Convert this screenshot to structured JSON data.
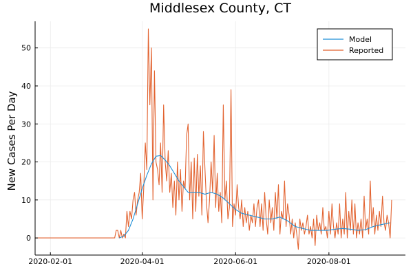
{
  "chart_data": {
    "type": "line",
    "title": "Middlesex County, CT",
    "xlabel": "",
    "ylabel": "New Cases Per Day",
    "x_ticks": [
      "2020-02-01",
      "2020-04-01",
      "2020-06-01",
      "2020-08-01"
    ],
    "y_ticks": [
      0,
      10,
      20,
      30,
      40,
      50
    ],
    "xlim": [
      "2020-01-22",
      "2020-09-20"
    ],
    "ylim": [
      -4.5,
      57
    ],
    "grid": true,
    "legend_position": "top-right",
    "series": [
      {
        "name": "Model",
        "color": "#1f8fd6",
        "points": [
          [
            "2020-03-17",
            0
          ],
          [
            "2020-03-20",
            0.5
          ],
          [
            "2020-03-23",
            2
          ],
          [
            "2020-03-26",
            5
          ],
          [
            "2020-03-29",
            9
          ],
          [
            "2020-04-01",
            13
          ],
          [
            "2020-04-04",
            16.5
          ],
          [
            "2020-04-07",
            19.5
          ],
          [
            "2020-04-10",
            21.5
          ],
          [
            "2020-04-13",
            21.7
          ],
          [
            "2020-04-16",
            20.5
          ],
          [
            "2020-04-19",
            19
          ],
          [
            "2020-04-22",
            17
          ],
          [
            "2020-04-25",
            15
          ],
          [
            "2020-04-28",
            13.5
          ],
          [
            "2020-05-01",
            12
          ],
          [
            "2020-05-04",
            12
          ],
          [
            "2020-05-08",
            12
          ],
          [
            "2020-05-12",
            11.5
          ],
          [
            "2020-05-16",
            12
          ],
          [
            "2020-05-20",
            11.5
          ],
          [
            "2020-05-24",
            10.5
          ],
          [
            "2020-05-28",
            9
          ],
          [
            "2020-06-01",
            7.5
          ],
          [
            "2020-06-05",
            6.5
          ],
          [
            "2020-06-10",
            6
          ],
          [
            "2020-06-15",
            5.5
          ],
          [
            "2020-06-20",
            5
          ],
          [
            "2020-06-25",
            5
          ],
          [
            "2020-06-30",
            5.5
          ],
          [
            "2020-07-05",
            4.5
          ],
          [
            "2020-07-10",
            3
          ],
          [
            "2020-07-15",
            2.5
          ],
          [
            "2020-07-20",
            2
          ],
          [
            "2020-07-25",
            2
          ],
          [
            "2020-07-31",
            2
          ],
          [
            "2020-08-05",
            2.3
          ],
          [
            "2020-08-10",
            2.5
          ],
          [
            "2020-08-15",
            2.3
          ],
          [
            "2020-08-20",
            2
          ],
          [
            "2020-08-25",
            2.2
          ],
          [
            "2020-08-30",
            3
          ],
          [
            "2020-09-04",
            3.5
          ],
          [
            "2020-09-10",
            4
          ]
        ]
      },
      {
        "name": "Reported",
        "color": "#e2622f",
        "points": [
          [
            "2020-01-22",
            0
          ],
          [
            "2020-03-14",
            0
          ],
          [
            "2020-03-15",
            2
          ],
          [
            "2020-03-16",
            2
          ],
          [
            "2020-03-17",
            0
          ],
          [
            "2020-03-18",
            2
          ],
          [
            "2020-03-19",
            0
          ],
          [
            "2020-03-20",
            1
          ],
          [
            "2020-03-21",
            0
          ],
          [
            "2020-03-22",
            7
          ],
          [
            "2020-03-23",
            3
          ],
          [
            "2020-03-24",
            7
          ],
          [
            "2020-03-25",
            5
          ],
          [
            "2020-03-26",
            10
          ],
          [
            "2020-03-27",
            12
          ],
          [
            "2020-03-28",
            6
          ],
          [
            "2020-03-29",
            10
          ],
          [
            "2020-03-30",
            12
          ],
          [
            "2020-03-31",
            17
          ],
          [
            "2020-04-01",
            5
          ],
          [
            "2020-04-02",
            13
          ],
          [
            "2020-04-03",
            25
          ],
          [
            "2020-04-04",
            18
          ],
          [
            "2020-04-05",
            55
          ],
          [
            "2020-04-06",
            35
          ],
          [
            "2020-04-07",
            50
          ],
          [
            "2020-04-08",
            10
          ],
          [
            "2020-04-09",
            44
          ],
          [
            "2020-04-10",
            20
          ],
          [
            "2020-04-11",
            18
          ],
          [
            "2020-04-12",
            14
          ],
          [
            "2020-04-13",
            25
          ],
          [
            "2020-04-14",
            12
          ],
          [
            "2020-04-15",
            35
          ],
          [
            "2020-04-16",
            20
          ],
          [
            "2020-04-17",
            15
          ],
          [
            "2020-04-18",
            23
          ],
          [
            "2020-04-19",
            12
          ],
          [
            "2020-04-20",
            17
          ],
          [
            "2020-04-21",
            8
          ],
          [
            "2020-04-22",
            15
          ],
          [
            "2020-04-23",
            6
          ],
          [
            "2020-04-24",
            20
          ],
          [
            "2020-04-25",
            10
          ],
          [
            "2020-04-26",
            18
          ],
          [
            "2020-04-27",
            7
          ],
          [
            "2020-04-28",
            15
          ],
          [
            "2020-04-29",
            13
          ],
          [
            "2020-04-30",
            27
          ],
          [
            "2020-05-01",
            30
          ],
          [
            "2020-05-02",
            10
          ],
          [
            "2020-05-03",
            20
          ],
          [
            "2020-05-04",
            5
          ],
          [
            "2020-05-05",
            21
          ],
          [
            "2020-05-06",
            7
          ],
          [
            "2020-05-07",
            22
          ],
          [
            "2020-05-08",
            11
          ],
          [
            "2020-05-09",
            19
          ],
          [
            "2020-05-10",
            6
          ],
          [
            "2020-05-11",
            28
          ],
          [
            "2020-05-12",
            18
          ],
          [
            "2020-05-13",
            9
          ],
          [
            "2020-05-14",
            4
          ],
          [
            "2020-05-15",
            10
          ],
          [
            "2020-05-16",
            20
          ],
          [
            "2020-05-17",
            12
          ],
          [
            "2020-05-18",
            27
          ],
          [
            "2020-05-19",
            8
          ],
          [
            "2020-05-20",
            17
          ],
          [
            "2020-05-21",
            7
          ],
          [
            "2020-05-22",
            12
          ],
          [
            "2020-05-23",
            4
          ],
          [
            "2020-05-24",
            35
          ],
          [
            "2020-05-25",
            10
          ],
          [
            "2020-05-26",
            15
          ],
          [
            "2020-05-27",
            5
          ],
          [
            "2020-05-28",
            8
          ],
          [
            "2020-05-29",
            39
          ],
          [
            "2020-05-30",
            3
          ],
          [
            "2020-05-31",
            9
          ],
          [
            "2020-06-01",
            6
          ],
          [
            "2020-06-02",
            14
          ],
          [
            "2020-06-03",
            8
          ],
          [
            "2020-06-04",
            5
          ],
          [
            "2020-06-05",
            10
          ],
          [
            "2020-06-06",
            3
          ],
          [
            "2020-06-07",
            8
          ],
          [
            "2020-06-08",
            4
          ],
          [
            "2020-06-09",
            7
          ],
          [
            "2020-06-10",
            2
          ],
          [
            "2020-06-11",
            6
          ],
          [
            "2020-06-12",
            4
          ],
          [
            "2020-06-13",
            9
          ],
          [
            "2020-06-14",
            3
          ],
          [
            "2020-06-15",
            8
          ],
          [
            "2020-06-16",
            10
          ],
          [
            "2020-06-17",
            3
          ],
          [
            "2020-06-18",
            9
          ],
          [
            "2020-06-19",
            2
          ],
          [
            "2020-06-20",
            12
          ],
          [
            "2020-06-21",
            5
          ],
          [
            "2020-06-22",
            1
          ],
          [
            "2020-06-23",
            10
          ],
          [
            "2020-06-24",
            4
          ],
          [
            "2020-06-25",
            8
          ],
          [
            "2020-06-26",
            2
          ],
          [
            "2020-06-27",
            12
          ],
          [
            "2020-06-28",
            5
          ],
          [
            "2020-06-29",
            14
          ],
          [
            "2020-06-30",
            1
          ],
          [
            "2020-07-01",
            7
          ],
          [
            "2020-07-02",
            5
          ],
          [
            "2020-07-03",
            15
          ],
          [
            "2020-07-04",
            3
          ],
          [
            "2020-07-05",
            9
          ],
          [
            "2020-07-06",
            6
          ],
          [
            "2020-07-07",
            1
          ],
          [
            "2020-07-08",
            5
          ],
          [
            "2020-07-09",
            0
          ],
          [
            "2020-07-10",
            4
          ],
          [
            "2020-07-11",
            1
          ],
          [
            "2020-07-12",
            -3
          ],
          [
            "2020-07-13",
            5
          ],
          [
            "2020-07-14",
            2
          ],
          [
            "2020-07-15",
            4
          ],
          [
            "2020-07-16",
            1
          ],
          [
            "2020-07-17",
            3
          ],
          [
            "2020-07-18",
            6
          ],
          [
            "2020-07-19",
            1
          ],
          [
            "2020-07-20",
            3
          ],
          [
            "2020-07-21",
            0
          ],
          [
            "2020-07-22",
            5
          ],
          [
            "2020-07-23",
            -2
          ],
          [
            "2020-07-24",
            6
          ],
          [
            "2020-07-25",
            2
          ],
          [
            "2020-07-26",
            4
          ],
          [
            "2020-07-27",
            1
          ],
          [
            "2020-07-28",
            8
          ],
          [
            "2020-07-29",
            2
          ],
          [
            "2020-07-30",
            3
          ],
          [
            "2020-07-31",
            0
          ],
          [
            "2020-08-01",
            7
          ],
          [
            "2020-08-02",
            1
          ],
          [
            "2020-08-03",
            9
          ],
          [
            "2020-08-04",
            3
          ],
          [
            "2020-08-05",
            0
          ],
          [
            "2020-08-06",
            4
          ],
          [
            "2020-08-07",
            1
          ],
          [
            "2020-08-08",
            9
          ],
          [
            "2020-08-09",
            0
          ],
          [
            "2020-08-10",
            5
          ],
          [
            "2020-08-11",
            1
          ],
          [
            "2020-08-12",
            12
          ],
          [
            "2020-08-13",
            0
          ],
          [
            "2020-08-14",
            7
          ],
          [
            "2020-08-15",
            2
          ],
          [
            "2020-08-16",
            10
          ],
          [
            "2020-08-17",
            1
          ],
          [
            "2020-08-18",
            9
          ],
          [
            "2020-08-19",
            0
          ],
          [
            "2020-08-20",
            4
          ],
          [
            "2020-08-21",
            1
          ],
          [
            "2020-08-22",
            5
          ],
          [
            "2020-08-23",
            0
          ],
          [
            "2020-08-24",
            11
          ],
          [
            "2020-08-25",
            2
          ],
          [
            "2020-08-26",
            5
          ],
          [
            "2020-08-27",
            1
          ],
          [
            "2020-08-28",
            15
          ],
          [
            "2020-08-29",
            3
          ],
          [
            "2020-08-30",
            8
          ],
          [
            "2020-08-31",
            1
          ],
          [
            "2020-09-01",
            6
          ],
          [
            "2020-09-02",
            2
          ],
          [
            "2020-09-03",
            7
          ],
          [
            "2020-09-04",
            3
          ],
          [
            "2020-09-05",
            11
          ],
          [
            "2020-09-06",
            4
          ],
          [
            "2020-09-07",
            2
          ],
          [
            "2020-09-08",
            6
          ],
          [
            "2020-09-09",
            4
          ],
          [
            "2020-09-10",
            0
          ],
          [
            "2020-09-11",
            10
          ]
        ]
      }
    ]
  }
}
